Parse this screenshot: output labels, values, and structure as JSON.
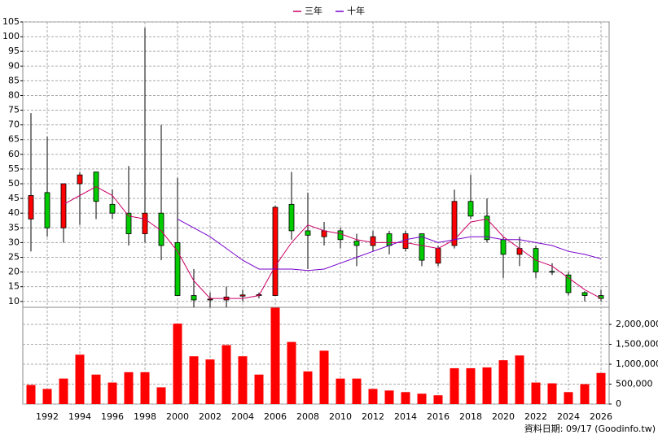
{
  "chart_data": {
    "type": "candlestick",
    "categories": [
      null,
      "1992",
      null,
      "1994",
      null,
      "1996",
      null,
      "1998",
      null,
      "2000",
      null,
      "2002",
      null,
      "2004",
      null,
      "2006",
      null,
      "2008",
      null,
      "2010",
      null,
      "2012",
      null,
      "2014",
      null,
      "2016",
      null,
      "2018",
      null,
      "2020",
      null,
      "2022",
      null,
      "2024",
      null,
      "2026"
    ],
    "open": [
      38,
      47,
      35,
      50,
      54,
      43,
      40,
      33,
      40,
      30,
      12,
      10.5,
      10.5,
      11.8,
      12,
      12,
      43,
      34,
      32,
      34,
      30.5,
      29,
      33,
      28,
      33,
      23,
      29,
      44,
      39,
      31,
      26,
      28,
      20.2,
      19,
      13,
      12
    ],
    "high": [
      74,
      66,
      50,
      54,
      54,
      48,
      56,
      103,
      70,
      52,
      21,
      13,
      15,
      14,
      13,
      42.5,
      54,
      47,
      37,
      35,
      33,
      34,
      34,
      34,
      33,
      29,
      48,
      53,
      45,
      32,
      32,
      29,
      23,
      20,
      13.5,
      14
    ],
    "low": [
      27,
      32,
      30,
      36,
      38,
      38,
      29,
      30,
      24,
      12,
      8,
      8,
      8,
      10,
      11,
      12,
      31,
      21,
      29,
      28,
      22,
      27,
      26,
      27,
      22,
      22,
      28,
      38,
      30,
      18,
      22,
      18,
      19,
      12,
      10,
      10
    ],
    "close": [
      46,
      35,
      50,
      53,
      44,
      40,
      33,
      40,
      29,
      12,
      10.5,
      10.8,
      11.5,
      12.2,
      12.3,
      42,
      34,
      32.5,
      34,
      31,
      29,
      32,
      29,
      33,
      24,
      28,
      44,
      39,
      31,
      26,
      28,
      20,
      20,
      13,
      12,
      11
    ],
    "up_color": "#ff0000",
    "down_color": "#00cc00",
    "series": [
      {
        "name": "三年",
        "color": "#cc0066",
        "values": [
          null,
          null,
          43,
          46,
          49,
          46,
          39,
          38,
          34,
          27,
          17,
          11,
          11,
          11,
          12,
          22,
          30,
          36,
          34,
          33,
          31,
          30,
          30,
          30,
          29,
          28,
          31,
          37,
          38,
          32,
          28,
          24,
          22,
          18,
          14,
          11
        ]
      },
      {
        "name": "十年",
        "color": "#7700cc",
        "values": [
          null,
          null,
          null,
          null,
          null,
          null,
          null,
          null,
          null,
          38,
          35,
          32,
          28,
          24,
          21,
          21,
          21,
          20.5,
          21,
          23,
          25,
          27,
          29,
          31,
          32,
          30,
          31,
          32,
          32,
          31,
          31,
          30,
          29,
          27,
          26,
          24.5
        ]
      }
    ],
    "ylim": [
      8,
      105
    ],
    "yticks": [
      10,
      15,
      20,
      25,
      30,
      35,
      40,
      45,
      50,
      55,
      60,
      65,
      70,
      75,
      80,
      85,
      90,
      95,
      100,
      105
    ],
    "volume": {
      "color": "#ff0000",
      "values": [
        480000,
        380000,
        640000,
        1240000,
        740000,
        540000,
        800000,
        800000,
        420000,
        2020000,
        1200000,
        1120000,
        1480000,
        1200000,
        740000,
        2420000,
        1560000,
        820000,
        1340000,
        640000,
        640000,
        380000,
        340000,
        300000,
        260000,
        220000,
        900000,
        900000,
        920000,
        1100000,
        1220000,
        540000,
        520000,
        300000,
        500000,
        780000
      ],
      "ylim": [
        0,
        2430000
      ],
      "yticks": [
        0,
        {
          "value": 500000,
          "label": "500,000"
        },
        {
          "value": 1000000,
          "label": "1,000,000"
        },
        {
          "value": 1500000,
          "label": "1,500,000"
        },
        {
          "value": 2000000,
          "label": "2,000,000"
        }
      ]
    },
    "grid": true,
    "legend": "top",
    "note": "資料日期: 09/17 (Goodinfo.tw)"
  }
}
